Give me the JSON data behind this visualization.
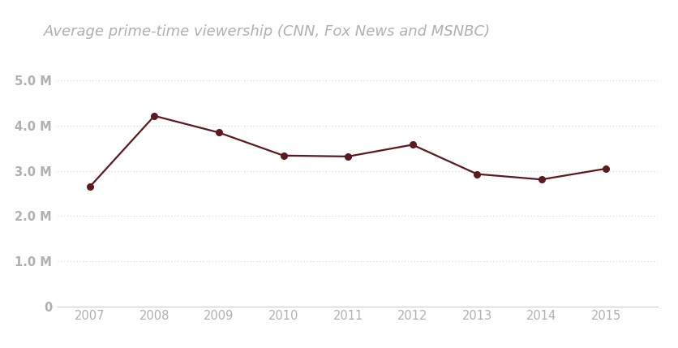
{
  "title": "Average prime-time viewership (CNN, Fox News and MSNBC)",
  "years": [
    2007,
    2008,
    2009,
    2010,
    2011,
    2012,
    2013,
    2014,
    2015
  ],
  "values": [
    2650000,
    4220000,
    3850000,
    3340000,
    3320000,
    3580000,
    2930000,
    2810000,
    3050000
  ],
  "line_color": "#5c1a1e",
  "marker_color": "#5c1a1e",
  "background_color": "#ffffff",
  "title_color": "#b0b0b0",
  "tick_color": "#b0b0b0",
  "grid_color": "#cccccc",
  "ylim": [
    0,
    5400000
  ],
  "yticks": [
    0,
    1000000,
    2000000,
    3000000,
    4000000,
    5000000
  ],
  "ytick_labels": [
    "0",
    "1.0 M",
    "2.0 M",
    "3.0 M",
    "4.0 M",
    "5.0 M"
  ],
  "title_fontsize": 13,
  "tick_fontsize": 10.5
}
